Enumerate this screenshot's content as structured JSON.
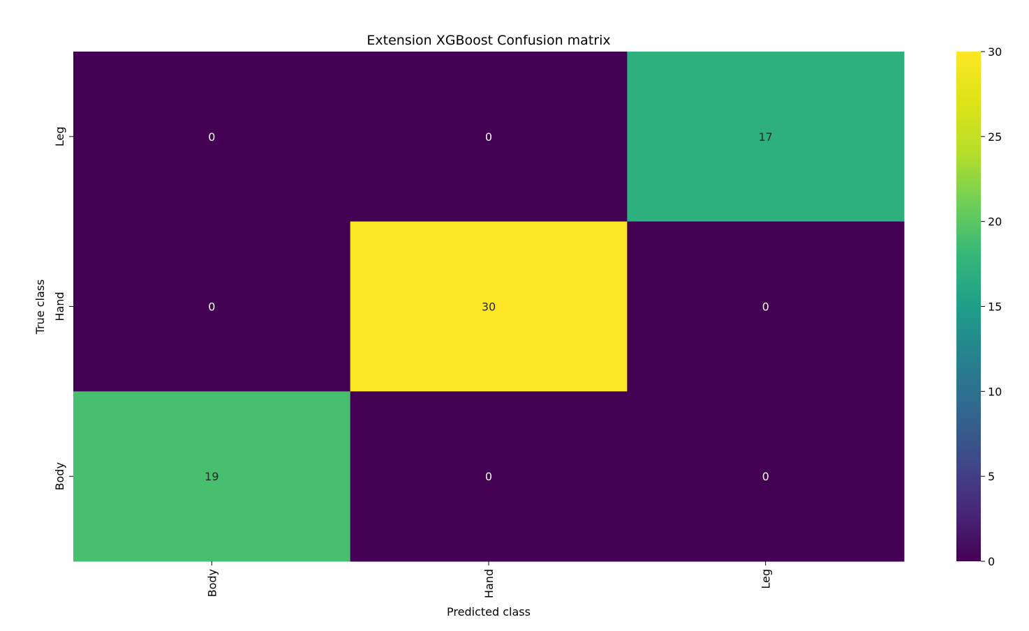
{
  "chart_data": {
    "type": "heatmap",
    "title": "Extension XGBoost Confusion matrix",
    "xlabel": "Predicted class",
    "ylabel": "True class",
    "x_categories": [
      "Body",
      "Hand",
      "Leg"
    ],
    "y_categories": [
      "Leg",
      "Hand",
      "Body"
    ],
    "values": [
      [
        0,
        0,
        17
      ],
      [
        0,
        30,
        0
      ],
      [
        19,
        0,
        0
      ]
    ],
    "colormap": "viridis",
    "vmin": 0,
    "vmax": 30,
    "colorbar_ticks": [
      "0",
      "5",
      "10",
      "15",
      "20",
      "25",
      "30"
    ],
    "grid": false
  }
}
